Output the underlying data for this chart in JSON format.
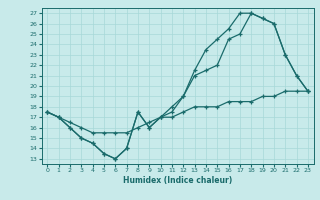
{
  "title": "",
  "xlabel": "Humidex (Indice chaleur)",
  "bg_color": "#c8eaea",
  "line_color": "#1a6b6b",
  "grid_color": "#a8d8d8",
  "x_ticks": [
    0,
    1,
    2,
    3,
    4,
    5,
    6,
    7,
    8,
    9,
    10,
    11,
    12,
    13,
    14,
    15,
    16,
    17,
    18,
    19,
    20,
    21,
    22,
    23
  ],
  "y_ticks": [
    13,
    14,
    15,
    16,
    17,
    18,
    19,
    20,
    21,
    22,
    23,
    24,
    25,
    26,
    27
  ],
  "xlim": [
    -0.5,
    23.5
  ],
  "ylim": [
    12.5,
    27.5
  ],
  "line1_x": [
    0,
    1,
    2,
    3,
    4,
    5,
    6,
    7,
    8,
    9,
    10,
    11,
    12,
    13,
    14,
    15,
    16,
    17,
    18,
    19,
    20,
    21,
    22,
    23
  ],
  "line1_y": [
    17.5,
    17.0,
    16.0,
    15.0,
    14.5,
    13.5,
    13.0,
    14.0,
    17.5,
    16.0,
    17.0,
    17.5,
    19.0,
    21.0,
    21.5,
    22.0,
    24.5,
    25.0,
    27.0,
    26.5,
    26.0,
    23.0,
    21.0,
    19.5
  ],
  "line2_x": [
    0,
    1,
    2,
    3,
    4,
    5,
    6,
    7,
    8,
    9,
    10,
    11,
    12,
    13,
    14,
    15,
    16,
    17,
    18,
    19,
    20,
    21,
    22,
    23
  ],
  "line2_y": [
    17.5,
    17.0,
    16.0,
    15.0,
    14.5,
    13.5,
    13.0,
    14.0,
    17.5,
    16.0,
    17.0,
    18.0,
    19.0,
    21.5,
    23.5,
    24.5,
    25.5,
    27.0,
    27.0,
    26.5,
    26.0,
    23.0,
    21.0,
    19.5
  ],
  "line3_x": [
    0,
    1,
    2,
    3,
    4,
    5,
    6,
    7,
    8,
    9,
    10,
    11,
    12,
    13,
    14,
    15,
    16,
    17,
    18,
    19,
    20,
    21,
    22,
    23
  ],
  "line3_y": [
    17.5,
    17.0,
    16.5,
    16.0,
    15.5,
    15.5,
    15.5,
    15.5,
    16.0,
    16.5,
    17.0,
    17.0,
    17.5,
    18.0,
    18.0,
    18.0,
    18.5,
    18.5,
    18.5,
    19.0,
    19.0,
    19.5,
    19.5,
    19.5
  ]
}
